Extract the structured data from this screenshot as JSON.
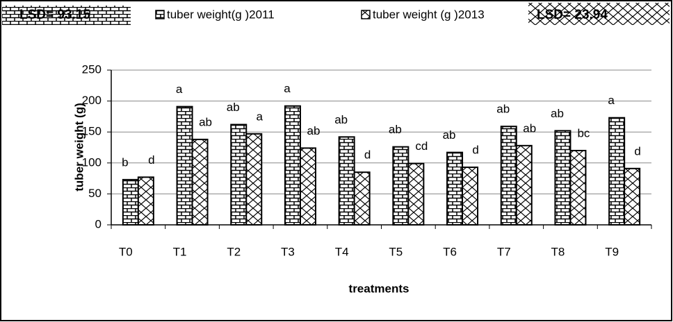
{
  "chart_data": {
    "type": "bar",
    "lsd_left": "LSD= 93.15",
    "lsd_right": "LSD= 23.94",
    "ylabel": "tuber weight (g)",
    "xlabel": "treatments",
    "categories": [
      "T0",
      "T1",
      "T2",
      "T3",
      "T4",
      "T5",
      "T6",
      "T7",
      "T8",
      "T9"
    ],
    "series": [
      {
        "name": "tuber weight(g )2011",
        "color": "#000000",
        "values": [
          73,
          191,
          162,
          192,
          142,
          126,
          117,
          159,
          152,
          173
        ],
        "letters": [
          "b",
          "a",
          "ab",
          "a",
          "ab",
          "ab",
          "ab",
          "ab",
          "ab",
          "a"
        ]
      },
      {
        "name": "tuber weight (g )2013",
        "color": "#000000",
        "values": [
          77,
          138,
          147,
          124,
          85,
          99,
          93,
          128,
          120,
          91
        ],
        "letters": [
          "d",
          "ab",
          "a",
          "ab",
          "d",
          "cd",
          "d",
          "ab",
          "bc",
          "d"
        ]
      }
    ],
    "ylim": [
      0,
      250
    ],
    "yticks": [
      0,
      50,
      100,
      150,
      200,
      250
    ],
    "grid": true
  }
}
